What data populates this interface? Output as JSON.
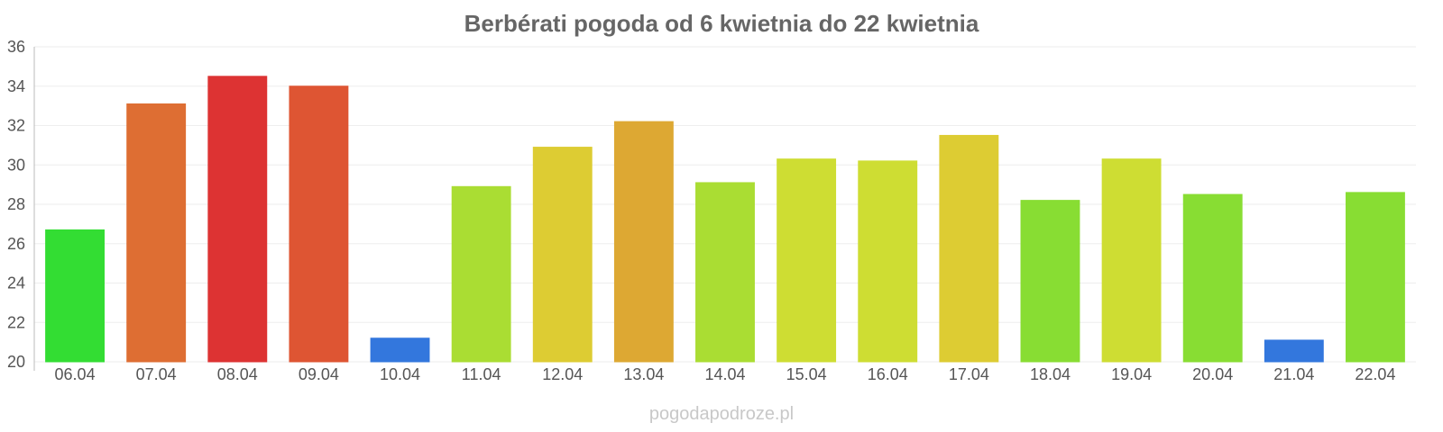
{
  "chart_data": {
    "type": "bar",
    "title": "Berbérati pogoda od 6 kwietnia do 22 kwietnia",
    "xlabel": "",
    "ylabel": "",
    "categories": [
      "06.04",
      "07.04",
      "08.04",
      "09.04",
      "10.04",
      "11.04",
      "12.04",
      "13.04",
      "14.04",
      "15.04",
      "16.04",
      "17.04",
      "18.04",
      "19.04",
      "20.04",
      "21.04",
      "22.04"
    ],
    "values": [
      26.7,
      33.1,
      34.5,
      34.0,
      21.2,
      28.9,
      30.9,
      32.2,
      29.1,
      30.3,
      30.2,
      31.5,
      28.2,
      30.3,
      28.5,
      21.1,
      28.6
    ],
    "colors": [
      "#33dd33",
      "#de6e33",
      "#dd3333",
      "#de5533",
      "#3377dd",
      "#aadd33",
      "#ddcc33",
      "#dda833",
      "#aadd33",
      "#cedd33",
      "#cedd33",
      "#ddcc33",
      "#88dd33",
      "#cedd33",
      "#88dd33",
      "#3377dd",
      "#88dd33"
    ],
    "ylim": [
      20,
      36
    ],
    "yticks": [
      "20",
      "22",
      "24",
      "26",
      "28",
      "30",
      "32",
      "34",
      "36"
    ],
    "grid": true,
    "legend": "none"
  },
  "watermark": "pogodapodroze.pl"
}
